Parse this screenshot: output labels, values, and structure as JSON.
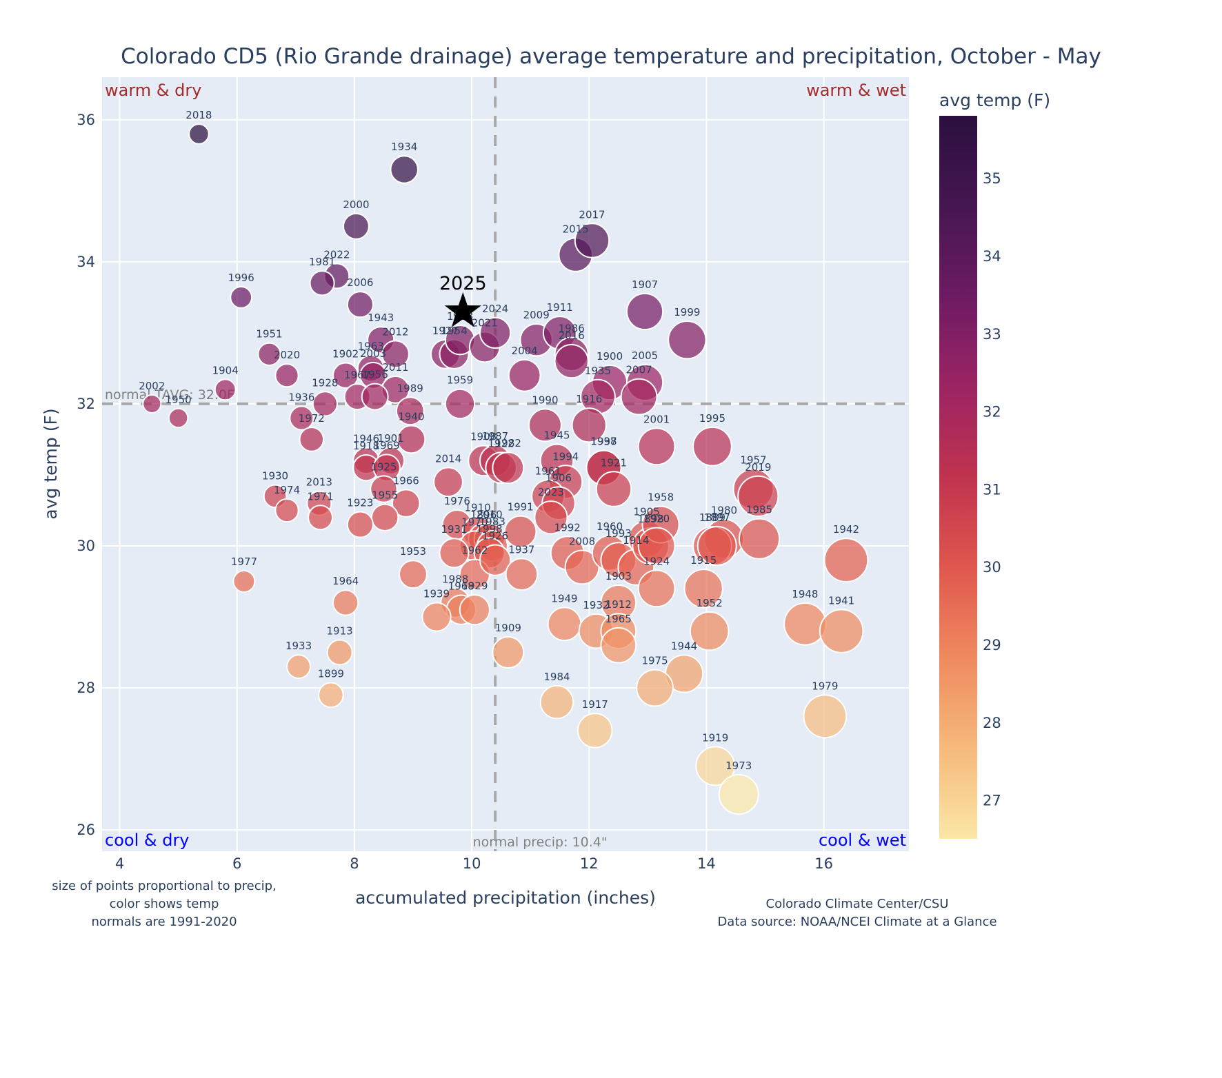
{
  "chart_data": {
    "type": "scatter",
    "title": "Colorado CD5 (Rio Grande drainage) average temperature and precipitation, October - May",
    "xlabel": "accumulated precipitation (inches)",
    "ylabel": "avg temp (F)",
    "xlim": [
      3.7,
      17.45
    ],
    "ylim": [
      25.7,
      36.6
    ],
    "xticks": [
      4,
      6,
      8,
      10,
      12,
      14,
      16
    ],
    "yticks": [
      26,
      28,
      30,
      32,
      34,
      36
    ],
    "grid": true,
    "colorbar": {
      "title": "avg temp (F)",
      "range": [
        26.5,
        35.8
      ],
      "ticks": [
        27,
        28,
        29,
        30,
        31,
        32,
        33,
        34,
        35
      ],
      "colorscale": "magma-like (light yellow = cool, dark purple = warm)",
      "stops": [
        "#fbe7a6",
        "#f6b97c",
        "#ef8a5f",
        "#e0574e",
        "#c0334f",
        "#9c2463",
        "#6d1b63",
        "#451651",
        "#2b0f3e"
      ]
    },
    "marker_size_encodes": "precip",
    "marker_color_encodes": "avg temp",
    "reference_lines": [
      {
        "orientation": "horizontal",
        "value": 32.0,
        "label": "normal TAVG: 32.0F"
      },
      {
        "orientation": "vertical",
        "value": 10.4,
        "label": "normal precip: 10.4\""
      }
    ],
    "quadrant_labels": {
      "top_left": "warm & dry",
      "top_right": "warm & wet",
      "bottom_left": "cool & dry",
      "bottom_right": "cool & wet"
    },
    "highlight": {
      "label": "2025",
      "x": 9.85,
      "y": 33.3,
      "marker": "star"
    },
    "points": [
      {
        "year": "2018",
        "x": 5.35,
        "y": 35.8
      },
      {
        "year": "1934",
        "x": 8.85,
        "y": 35.3
      },
      {
        "year": "2000",
        "x": 8.03,
        "y": 34.5
      },
      {
        "year": "2022",
        "x": 7.7,
        "y": 33.8
      },
      {
        "year": "1981",
        "x": 7.45,
        "y": 33.7
      },
      {
        "year": "1996",
        "x": 6.07,
        "y": 33.5
      },
      {
        "year": "2006",
        "x": 8.1,
        "y": 33.4
      },
      {
        "year": "1943",
        "x": 8.45,
        "y": 32.9
      },
      {
        "year": "2012",
        "x": 8.7,
        "y": 32.7
      },
      {
        "year": "1951",
        "x": 6.55,
        "y": 32.7
      },
      {
        "year": "2020",
        "x": 6.85,
        "y": 32.4
      },
      {
        "year": "1963",
        "x": 8.28,
        "y": 32.5
      },
      {
        "year": "1902",
        "x": 7.85,
        "y": 32.4
      },
      {
        "year": "2003",
        "x": 8.32,
        "y": 32.4
      },
      {
        "year": "2011",
        "x": 8.7,
        "y": 32.2
      },
      {
        "year": "1967",
        "x": 8.05,
        "y": 32.1
      },
      {
        "year": "1956",
        "x": 8.35,
        "y": 32.1
      },
      {
        "year": "1904",
        "x": 5.8,
        "y": 32.2
      },
      {
        "year": "2002",
        "x": 4.55,
        "y": 32.0
      },
      {
        "year": "1950",
        "x": 5.0,
        "y": 31.8
      },
      {
        "year": "1928",
        "x": 7.5,
        "y": 32.0
      },
      {
        "year": "1936",
        "x": 7.1,
        "y": 31.8
      },
      {
        "year": "1972",
        "x": 7.27,
        "y": 31.5
      },
      {
        "year": "1989",
        "x": 8.95,
        "y": 31.9
      },
      {
        "year": "1940",
        "x": 8.97,
        "y": 31.5
      },
      {
        "year": "1927",
        "x": 9.55,
        "y": 32.7
      },
      {
        "year": "1954",
        "x": 9.7,
        "y": 32.7
      },
      {
        "year": "1918",
        "x": 9.8,
        "y": 32.9
      },
      {
        "year": "2021",
        "x": 10.22,
        "y": 32.8
      },
      {
        "year": "2024",
        "x": 10.4,
        "y": 33.0
      },
      {
        "year": "1959",
        "x": 9.8,
        "y": 32.0
      },
      {
        "year": "2009",
        "x": 11.1,
        "y": 32.9
      },
      {
        "year": "1911",
        "x": 11.5,
        "y": 33.0
      },
      {
        "year": "1986",
        "x": 11.7,
        "y": 32.7
      },
      {
        "year": "2016",
        "x": 11.7,
        "y": 32.6
      },
      {
        "year": "2004",
        "x": 10.9,
        "y": 32.4
      },
      {
        "year": "2015",
        "x": 11.77,
        "y": 34.1
      },
      {
        "year": "2017",
        "x": 12.05,
        "y": 34.3
      },
      {
        "year": "1907",
        "x": 12.95,
        "y": 33.3
      },
      {
        "year": "1999",
        "x": 13.67,
        "y": 32.9
      },
      {
        "year": "1900",
        "x": 12.35,
        "y": 32.3
      },
      {
        "year": "2005",
        "x": 12.95,
        "y": 32.3
      },
      {
        "year": "1935",
        "x": 12.15,
        "y": 32.1
      },
      {
        "year": "2007",
        "x": 12.85,
        "y": 32.1
      },
      {
        "year": "1990",
        "x": 11.25,
        "y": 31.7
      },
      {
        "year": "1916",
        "x": 12.0,
        "y": 31.7
      },
      {
        "year": "2001",
        "x": 13.15,
        "y": 31.4
      },
      {
        "year": "1995",
        "x": 14.1,
        "y": 31.4
      },
      {
        "year": "1946",
        "x": 8.2,
        "y": 31.2
      },
      {
        "year": "1901",
        "x": 8.62,
        "y": 31.2
      },
      {
        "year": "1918b",
        "x": 8.2,
        "y": 31.1
      },
      {
        "year": "1969",
        "x": 8.55,
        "y": 31.1
      },
      {
        "year": "1925",
        "x": 8.5,
        "y": 30.8
      },
      {
        "year": "1966",
        "x": 8.88,
        "y": 30.6
      },
      {
        "year": "1955",
        "x": 8.52,
        "y": 30.4
      },
      {
        "year": "1923",
        "x": 8.1,
        "y": 30.3
      },
      {
        "year": "2014",
        "x": 9.6,
        "y": 30.9
      },
      {
        "year": "1930",
        "x": 6.65,
        "y": 30.7
      },
      {
        "year": "1974",
        "x": 6.85,
        "y": 30.5
      },
      {
        "year": "2013",
        "x": 7.4,
        "y": 30.6
      },
      {
        "year": "1971",
        "x": 7.42,
        "y": 30.4
      },
      {
        "year": "1908",
        "x": 10.2,
        "y": 31.2
      },
      {
        "year": "1987",
        "x": 10.4,
        "y": 31.2
      },
      {
        "year": "1922",
        "x": 10.5,
        "y": 31.1
      },
      {
        "year": "1982",
        "x": 10.62,
        "y": 31.1
      },
      {
        "year": "1945",
        "x": 11.45,
        "y": 31.2
      },
      {
        "year": "1994",
        "x": 11.6,
        "y": 30.9
      },
      {
        "year": "1961",
        "x": 11.3,
        "y": 30.7
      },
      {
        "year": "1906",
        "x": 11.48,
        "y": 30.6
      },
      {
        "year": "2023",
        "x": 11.35,
        "y": 30.4
      },
      {
        "year": "1997",
        "x": 12.25,
        "y": 31.1
      },
      {
        "year": "1938",
        "x": 12.25,
        "y": 31.1
      },
      {
        "year": "1921",
        "x": 12.42,
        "y": 30.8
      },
      {
        "year": "1976",
        "x": 9.75,
        "y": 30.3
      },
      {
        "year": "1910",
        "x": 10.1,
        "y": 30.2
      },
      {
        "year": "1896",
        "x": 10.2,
        "y": 30.1
      },
      {
        "year": "2010",
        "x": 10.3,
        "y": 30.1
      },
      {
        "year": "1970",
        "x": 10.05,
        "y": 30.0
      },
      {
        "year": "1931",
        "x": 9.7,
        "y": 29.9
      },
      {
        "year": "1983",
        "x": 10.35,
        "y": 30.0
      },
      {
        "year": "1998",
        "x": 10.3,
        "y": 29.9
      },
      {
        "year": "1962",
        "x": 10.05,
        "y": 29.6
      },
      {
        "year": "1991",
        "x": 10.83,
        "y": 30.2
      },
      {
        "year": "1926",
        "x": 10.4,
        "y": 29.8
      },
      {
        "year": "1953",
        "x": 9.0,
        "y": 29.6
      },
      {
        "year": "1937",
        "x": 10.85,
        "y": 29.6
      },
      {
        "year": "1992",
        "x": 11.63,
        "y": 29.9
      },
      {
        "year": "2008",
        "x": 11.88,
        "y": 29.7
      },
      {
        "year": "1960",
        "x": 12.35,
        "y": 29.9
      },
      {
        "year": "1993",
        "x": 12.5,
        "y": 29.8
      },
      {
        "year": "1914",
        "x": 12.8,
        "y": 29.7
      },
      {
        "year": "1905",
        "x": 12.98,
        "y": 30.1
      },
      {
        "year": "1898",
        "x": 13.05,
        "y": 30.0
      },
      {
        "year": "1958",
        "x": 13.22,
        "y": 30.3
      },
      {
        "year": "1920",
        "x": 13.15,
        "y": 30.0
      },
      {
        "year": "1903",
        "x": 12.5,
        "y": 29.2
      },
      {
        "year": "1924",
        "x": 13.15,
        "y": 29.4
      },
      {
        "year": "1915",
        "x": 13.95,
        "y": 29.4
      },
      {
        "year": "1980",
        "x": 14.3,
        "y": 30.1
      },
      {
        "year": "1889",
        "x": 14.1,
        "y": 30.0
      },
      {
        "year": "1897",
        "x": 14.18,
        "y": 30.0
      },
      {
        "year": "1957",
        "x": 14.8,
        "y": 30.8
      },
      {
        "year": "2019",
        "x": 14.88,
        "y": 30.7
      },
      {
        "year": "1985",
        "x": 14.9,
        "y": 30.1
      },
      {
        "year": "1942",
        "x": 16.38,
        "y": 29.8
      },
      {
        "year": "1977",
        "x": 6.12,
        "y": 29.5
      },
      {
        "year": "1964",
        "x": 7.85,
        "y": 29.2
      },
      {
        "year": "1988",
        "x": 9.72,
        "y": 29.2
      },
      {
        "year": "1968",
        "x": 9.82,
        "y": 29.1
      },
      {
        "year": "1929",
        "x": 10.05,
        "y": 29.1
      },
      {
        "year": "1939",
        "x": 9.4,
        "y": 29.0
      },
      {
        "year": "1949",
        "x": 11.58,
        "y": 28.9
      },
      {
        "year": "1932",
        "x": 12.12,
        "y": 28.8
      },
      {
        "year": "1912",
        "x": 12.5,
        "y": 28.8
      },
      {
        "year": "1965",
        "x": 12.5,
        "y": 28.6
      },
      {
        "year": "1952",
        "x": 14.05,
        "y": 28.8
      },
      {
        "year": "1948",
        "x": 15.68,
        "y": 28.9
      },
      {
        "year": "1941",
        "x": 16.3,
        "y": 28.8
      },
      {
        "year": "1909",
        "x": 10.62,
        "y": 28.5
      },
      {
        "year": "1913",
        "x": 7.75,
        "y": 28.5
      },
      {
        "year": "1933",
        "x": 7.05,
        "y": 28.3
      },
      {
        "year": "1899",
        "x": 7.6,
        "y": 27.9
      },
      {
        "year": "1944",
        "x": 13.62,
        "y": 28.2
      },
      {
        "year": "1975",
        "x": 13.12,
        "y": 28.0
      },
      {
        "year": "1984",
        "x": 11.45,
        "y": 27.8
      },
      {
        "year": "1917",
        "x": 12.1,
        "y": 27.4
      },
      {
        "year": "1979",
        "x": 16.02,
        "y": 27.6
      },
      {
        "year": "1919",
        "x": 14.15,
        "y": 26.9
      },
      {
        "year": "1973",
        "x": 14.55,
        "y": 26.5
      }
    ]
  },
  "notes": {
    "left_line1": "size of points proportional to precip,",
    "left_line2": "color shows temp",
    "left_line3": "normals are 1991-2020",
    "right_line1": "Colorado Climate Center/CSU",
    "right_line2": "Data source: NOAA/NCEI Climate at a Glance"
  }
}
